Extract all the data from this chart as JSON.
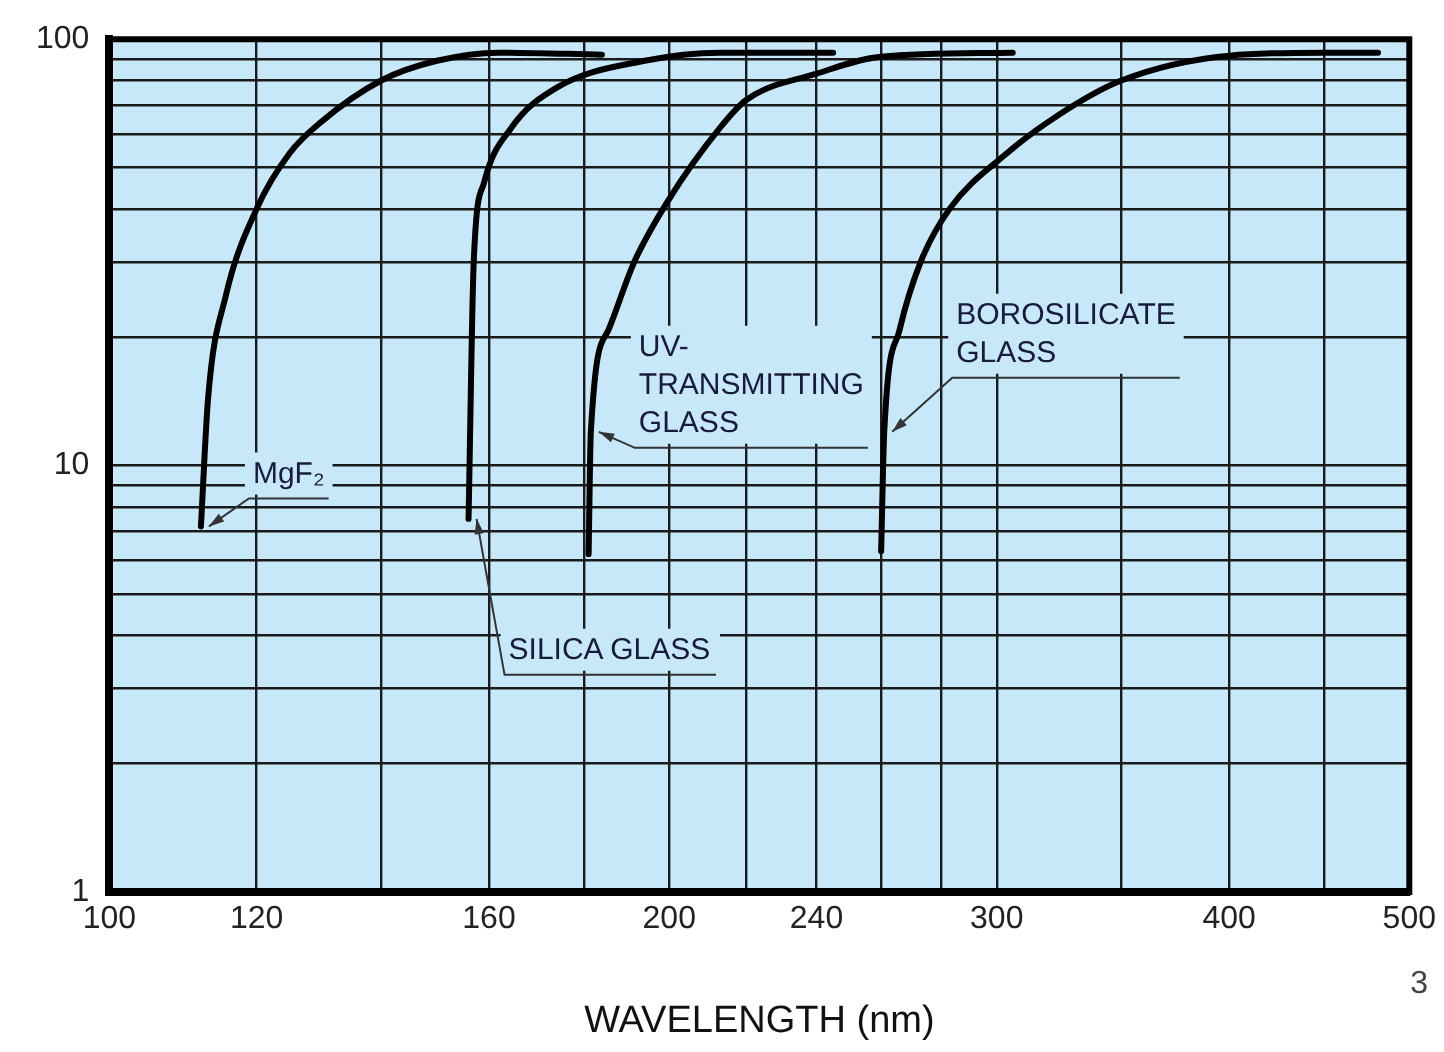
{
  "chart_data": {
    "type": "line",
    "xlabel": "WAVELENGTH (nm)",
    "log": "xy",
    "grid": true,
    "legend": false,
    "marker": "none",
    "line_style": "solid",
    "xlim": [
      100,
      500
    ],
    "xticks": [
      100,
      120,
      {
        "value": 140,
        "label": null
      },
      160,
      {
        "value": 180,
        "label": null
      },
      200,
      {
        "value": 220,
        "label": null
      },
      240,
      {
        "value": 260,
        "label": null
      },
      {
        "value": 280,
        "label": null
      },
      300,
      {
        "value": 350,
        "label": null
      },
      400,
      {
        "value": 450,
        "label": null
      },
      500
    ],
    "ylim": [
      1,
      100
    ],
    "yticks": [
      1,
      {
        "value": 2,
        "label": null
      },
      {
        "value": 3,
        "label": null
      },
      {
        "value": 4,
        "label": null
      },
      {
        "value": 5,
        "label": null
      },
      {
        "value": 6,
        "label": null
      },
      {
        "value": 7,
        "label": null
      },
      {
        "value": 8,
        "label": null
      },
      {
        "value": 9,
        "label": null
      },
      10,
      {
        "value": 20,
        "label": null
      },
      {
        "value": 30,
        "label": null
      },
      {
        "value": 40,
        "label": null
      },
      {
        "value": 50,
        "label": null
      },
      {
        "value": 60,
        "label": null
      },
      {
        "value": 70,
        "label": null
      },
      {
        "value": 80,
        "label": null
      },
      {
        "value": 90,
        "label": null
      },
      100
    ],
    "annotations": [
      "3"
    ],
    "series": [
      {
        "name": "MgF₂",
        "color": "#000000",
        "x": [
          112,
          113,
          115.5,
          120,
          125,
          130,
          140,
          150,
          162,
          184
        ],
        "values": [
          7.2,
          14.4,
          25,
          40,
          54,
          64,
          80,
          89,
          93,
          92
        ]
      },
      {
        "name": "SILICA GLASS",
        "color": "#000000",
        "x": [
          156,
          157,
          159,
          164.5,
          174,
          194,
          213,
          245
        ],
        "values": [
          7.5,
          30,
          46,
          62,
          77,
          89,
          93,
          93
        ]
      },
      {
        "name": "UV-TRANSMITTING GLASS",
        "color": "#000000",
        "x": [
          181,
          181.5,
          185.5,
          191.5,
          199.5,
          213,
          220,
          240,
          260,
          306
        ],
        "values": [
          6.2,
          12,
          20.8,
          30,
          41.5,
          62,
          72,
          83,
          91,
          93
        ]
      },
      {
        "name": "BOROSILICATE GLASS",
        "color": "#000000",
        "x": [
          260,
          261,
          266,
          273,
          283,
          303,
          324,
          350,
          400,
          450,
          481
        ],
        "values": [
          6.3,
          12,
          20.8,
          30,
          40,
          53.5,
          66.5,
          80,
          91.5,
          93,
          93
        ]
      }
    ]
  }
}
